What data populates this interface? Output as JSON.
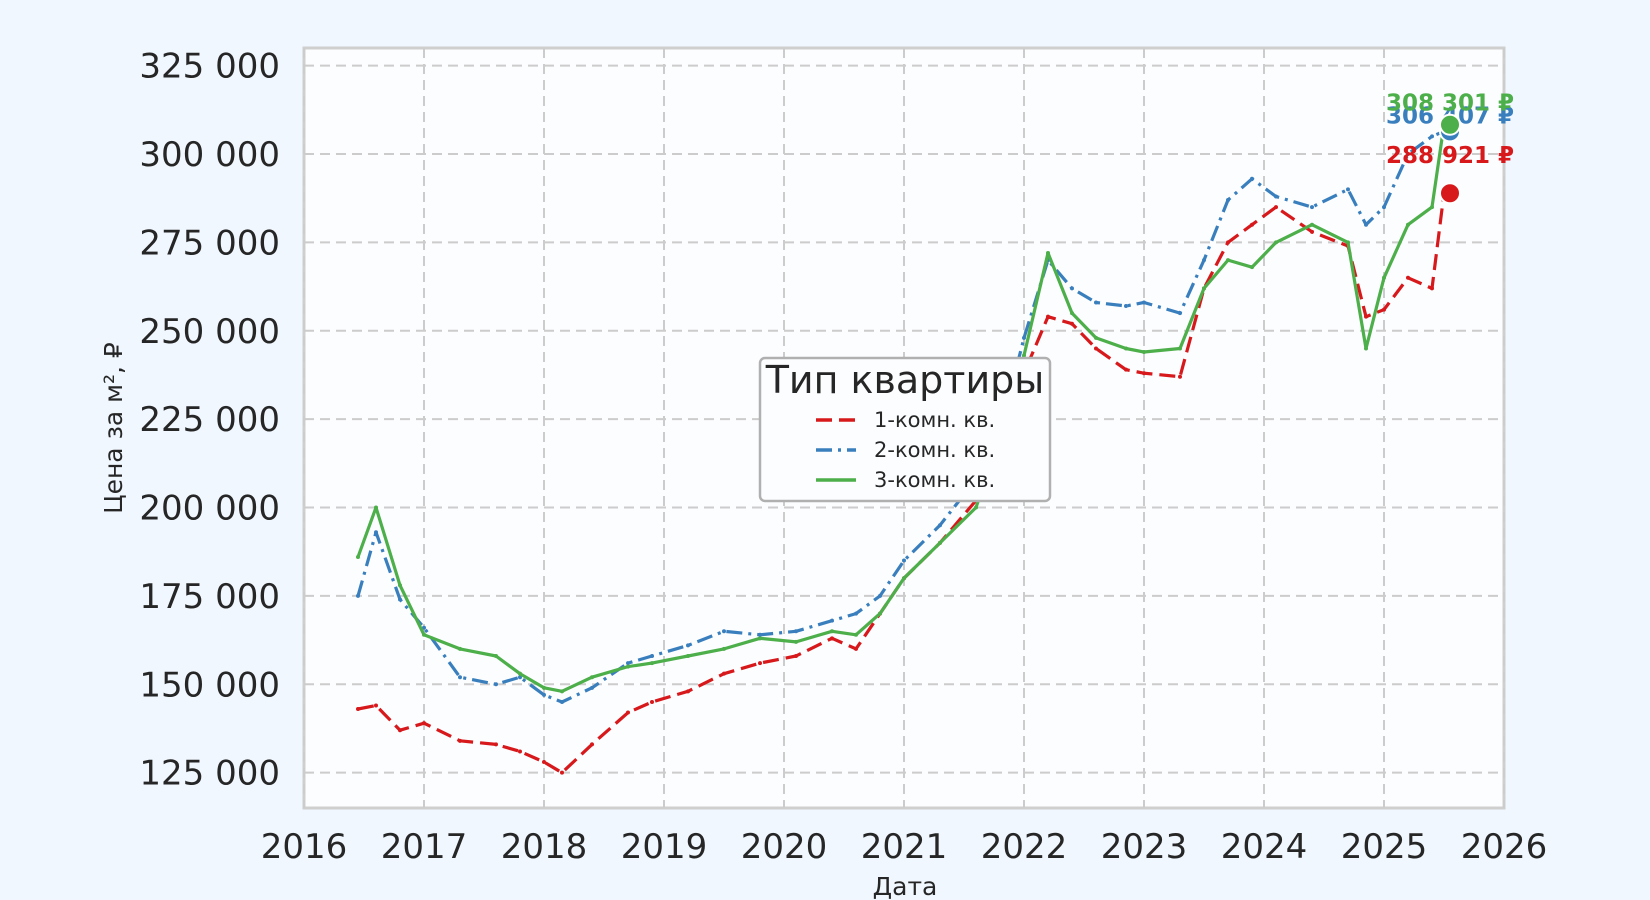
{
  "chart_data": {
    "type": "line",
    "title": "",
    "xlabel": "Дата",
    "ylabel": "Цена за м², ₽",
    "xlim": [
      2016,
      2026
    ],
    "ylim": [
      115000,
      330000
    ],
    "x_ticks": [
      "2016",
      "2017",
      "2018",
      "2019",
      "2020",
      "2021",
      "2022",
      "2023",
      "2024",
      "2025",
      "2026"
    ],
    "y_ticks": [
      "125 000",
      "150 000",
      "175 000",
      "200 000",
      "225 000",
      "250 000",
      "275 000",
      "300 000",
      "325 000"
    ],
    "grid": true,
    "legend": {
      "title": "Тип квартиры",
      "placement": "center"
    },
    "series": [
      {
        "name": "1-комн. кв.",
        "color": "#d7191c",
        "style": "dashed",
        "x": [
          2016.45,
          2016.6,
          2016.8,
          2017.0,
          2017.3,
          2017.6,
          2017.8,
          2018.0,
          2018.15,
          2018.4,
          2018.7,
          2018.9,
          2019.2,
          2019.5,
          2019.8,
          2020.1,
          2020.4,
          2020.6,
          2020.8,
          2021.0,
          2021.3,
          2021.6,
          2021.85,
          2022.0,
          2022.2,
          2022.4,
          2022.6,
          2022.85,
          2023.0,
          2023.3,
          2023.5,
          2023.7,
          2023.9,
          2024.1,
          2024.4,
          2024.7,
          2024.85,
          2025.0,
          2025.2,
          2025.4,
          2025.5
        ],
        "values": [
          143000,
          144000,
          137000,
          139000,
          134000,
          133000,
          131000,
          128000,
          125000,
          133000,
          142000,
          145000,
          148000,
          153000,
          156000,
          158000,
          163000,
          160000,
          170000,
          180000,
          190000,
          202000,
          215000,
          238000,
          254000,
          252000,
          245000,
          239000,
          238000,
          237000,
          262000,
          275000,
          280000,
          285000,
          278000,
          274000,
          254000,
          256000,
          265000,
          262000,
          288921
        ]
      },
      {
        "name": "2-комн. кв.",
        "color": "#3a7fbd",
        "style": "dashdot",
        "x": [
          2016.45,
          2016.6,
          2016.8,
          2017.0,
          2017.3,
          2017.6,
          2017.8,
          2018.0,
          2018.15,
          2018.4,
          2018.7,
          2018.9,
          2019.2,
          2019.5,
          2019.8,
          2020.1,
          2020.4,
          2020.6,
          2020.8,
          2021.0,
          2021.3,
          2021.6,
          2021.85,
          2022.0,
          2022.2,
          2022.4,
          2022.6,
          2022.85,
          2023.0,
          2023.3,
          2023.5,
          2023.7,
          2023.9,
          2024.1,
          2024.4,
          2024.7,
          2024.85,
          2025.0,
          2025.2,
          2025.4,
          2025.5
        ],
        "values": [
          175000,
          193000,
          174000,
          166000,
          152000,
          150000,
          152000,
          147000,
          145000,
          149000,
          156000,
          158000,
          161000,
          165000,
          164000,
          165000,
          168000,
          170000,
          175000,
          185000,
          195000,
          208000,
          228000,
          248000,
          270000,
          262000,
          258000,
          257000,
          258000,
          255000,
          270000,
          287000,
          293000,
          288000,
          285000,
          290000,
          280000,
          285000,
          300000,
          305000,
          306407
        ]
      },
      {
        "name": "3-комн. кв.",
        "color": "#4daf4a",
        "style": "solid",
        "x": [
          2016.45,
          2016.6,
          2016.8,
          2017.0,
          2017.3,
          2017.6,
          2017.8,
          2018.0,
          2018.15,
          2018.4,
          2018.7,
          2018.9,
          2019.2,
          2019.5,
          2019.8,
          2020.1,
          2020.4,
          2020.6,
          2020.8,
          2021.0,
          2021.3,
          2021.6,
          2021.85,
          2022.0,
          2022.2,
          2022.4,
          2022.6,
          2022.85,
          2023.0,
          2023.3,
          2023.5,
          2023.7,
          2023.9,
          2024.1,
          2024.4,
          2024.7,
          2024.85,
          2025.0,
          2025.2,
          2025.4,
          2025.5
        ],
        "values": [
          186000,
          200000,
          178000,
          164000,
          160000,
          158000,
          153000,
          149000,
          148000,
          152000,
          155000,
          156000,
          158000,
          160000,
          163000,
          162000,
          165000,
          164000,
          170000,
          180000,
          190000,
          200000,
          225000,
          243000,
          272000,
          255000,
          248000,
          245000,
          244000,
          245000,
          262000,
          270000,
          268000,
          275000,
          280000,
          275000,
          245000,
          265000,
          280000,
          285000,
          308301
        ]
      }
    ],
    "annotations": [
      {
        "series": "1-комн. кв.",
        "x": 2025.55,
        "y": 288921,
        "text": "288 921 ₽"
      },
      {
        "series": "2-комн. кв.",
        "x": 2025.55,
        "y": 306407,
        "text": "306 407 ₽"
      },
      {
        "series": "3-комн. кв.",
        "x": 2025.55,
        "y": 308301,
        "text": "308 301 ₽"
      }
    ]
  }
}
